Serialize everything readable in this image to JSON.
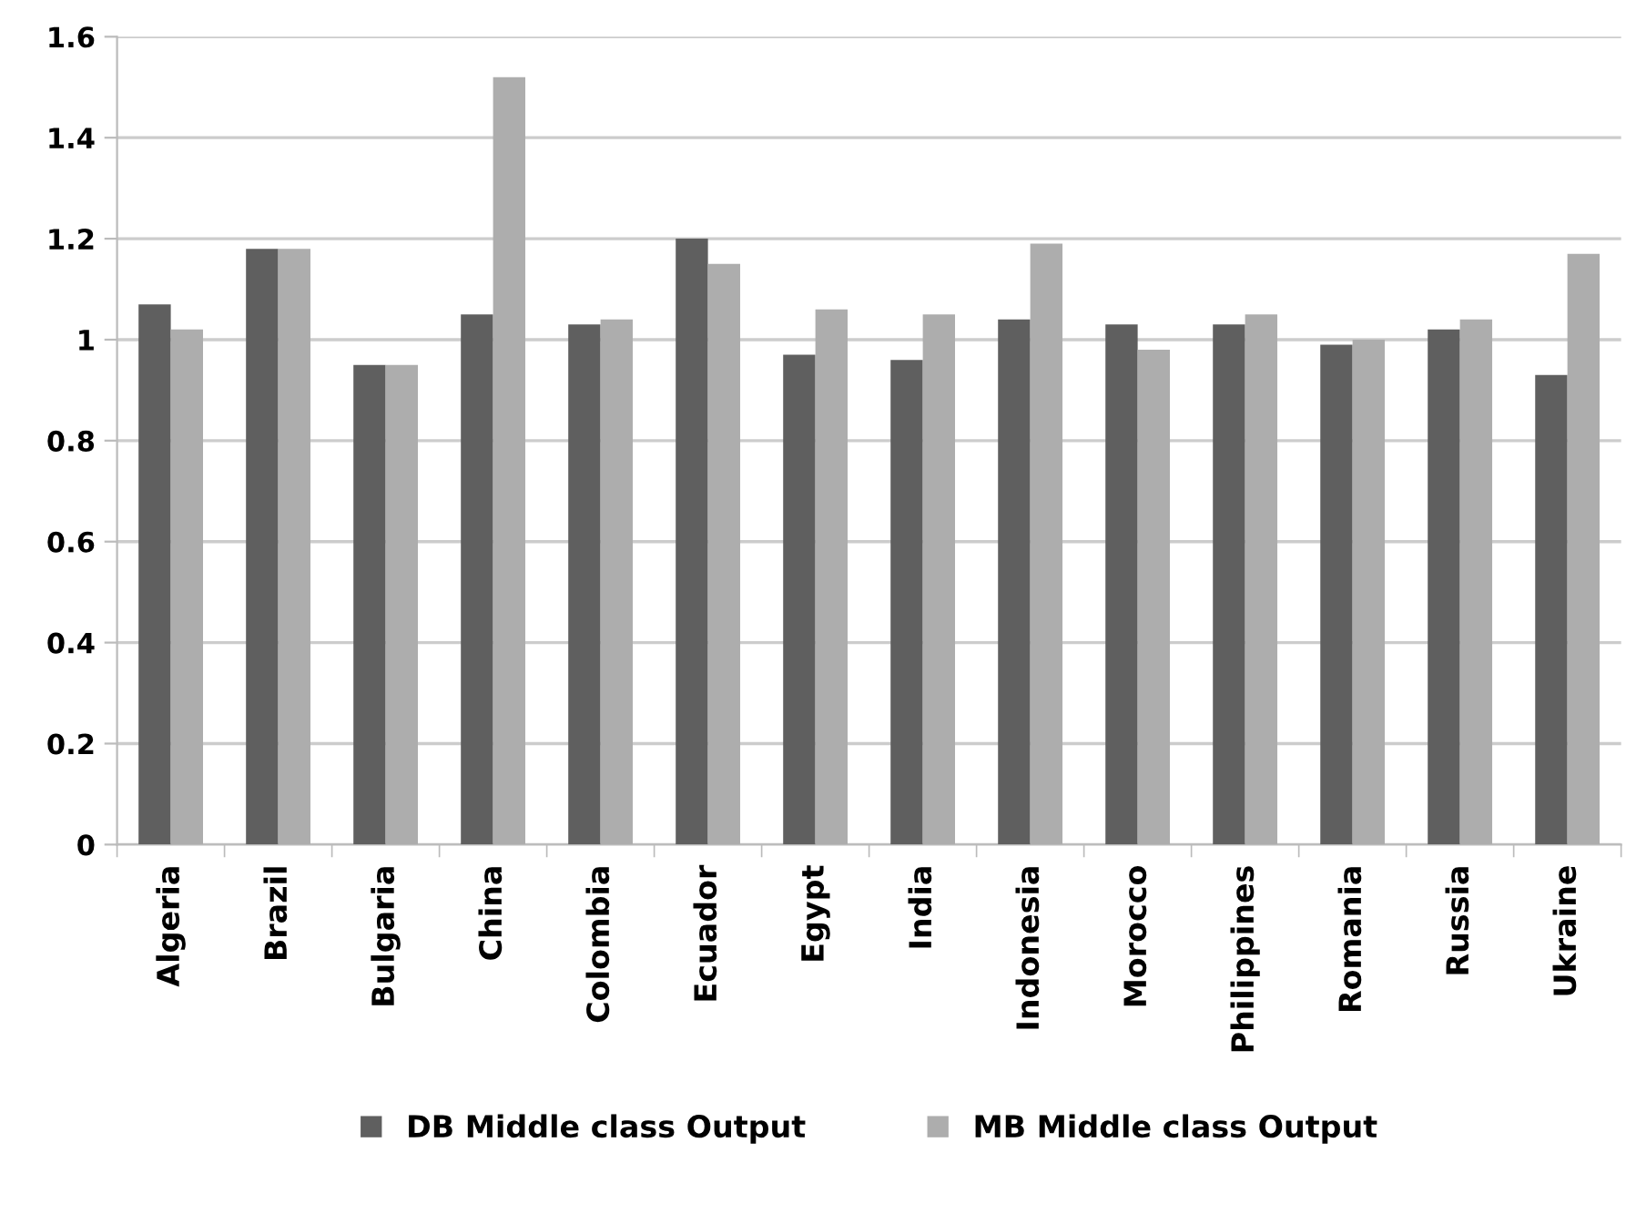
{
  "chart_data": {
    "type": "bar",
    "categories": [
      "Algeria",
      "Brazil",
      "Bulgaria",
      "China",
      "Colombia",
      "Ecuador",
      "Egypt",
      "India",
      "Indonesia",
      "Morocco",
      "Philippines",
      "Romania",
      "Russia",
      "Ukraine"
    ],
    "series": [
      {
        "name": "DB Middle class Output",
        "color": "#5f5f5f",
        "values": [
          1.07,
          1.18,
          0.95,
          1.05,
          1.03,
          1.2,
          0.97,
          0.96,
          1.04,
          1.03,
          1.03,
          0.99,
          1.02,
          0.93
        ]
      },
      {
        "name": "MB Middle class Output",
        "color": "#adadad",
        "values": [
          1.02,
          1.18,
          0.95,
          1.52,
          1.04,
          1.15,
          1.06,
          1.05,
          1.19,
          0.98,
          1.05,
          1.0,
          1.04,
          1.17
        ]
      }
    ],
    "ylim": [
      0,
      1.6
    ],
    "yticks": [
      0,
      0.2,
      0.4,
      0.6,
      0.8,
      1,
      1.2,
      1.4,
      1.6
    ],
    "grid": "y",
    "legend": "bottom"
  }
}
